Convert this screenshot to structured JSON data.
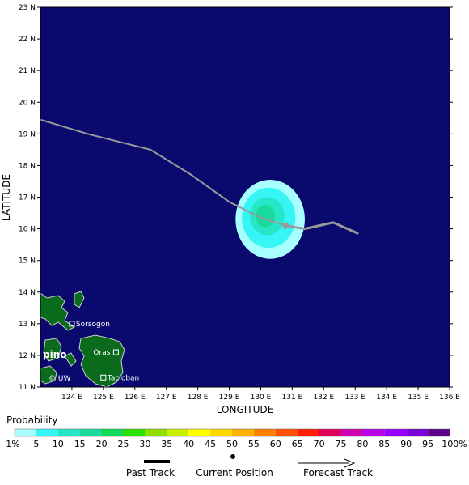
{
  "axes": {
    "xlabel": "LONGITUDE",
    "ylabel": "LATITUDE",
    "lon_min": 123.0,
    "lon_max": 136.0,
    "lat_min": 11.0,
    "lat_max": 23.0,
    "lon_ticks": [
      "124 E",
      "125 E",
      "126 E",
      "127 E",
      "128 E",
      "129 E",
      "130 E",
      "131 E",
      "132 E",
      "133 E",
      "134 E",
      "135 E",
      "136 E"
    ],
    "lat_ticks": [
      "11 N",
      "12 N",
      "13 N",
      "14 N",
      "15 N",
      "16 N",
      "17 N",
      "18 N",
      "19 N",
      "20 N",
      "21 N",
      "22 N",
      "23 N"
    ]
  },
  "colors": {
    "ocean": "#0a0a6e",
    "land": "#0b6b1c",
    "land_edge": "#cfcfcf",
    "track": "#9a9a9a"
  },
  "places": [
    {
      "name": "Sorsogon",
      "lon": 124.0,
      "lat": 13.0
    },
    {
      "name": "Oras",
      "lon": 125.4,
      "lat": 12.1
    },
    {
      "name": "Tacloban",
      "lon": 125.0,
      "lat": 11.3
    },
    {
      "name": "pino",
      "lon": 123.2,
      "lat": 12.0
    }
  ],
  "watermark": "© UW",
  "past_track": [
    [
      123.0,
      19.45
    ],
    [
      124.5,
      19.0
    ],
    [
      126.5,
      18.5
    ],
    [
      127.8,
      17.7
    ],
    [
      129.0,
      16.85
    ],
    [
      130.0,
      16.35
    ],
    [
      130.8,
      16.1
    ]
  ],
  "current_position": [
    130.8,
    16.1
  ],
  "forecast_track": [
    [
      130.8,
      16.1
    ],
    [
      131.4,
      16.0
    ],
    [
      132.3,
      16.2
    ],
    [
      133.1,
      15.85
    ]
  ],
  "probability": {
    "title": "Probability",
    "labels": [
      "1%",
      "5",
      "10",
      "15",
      "20",
      "25",
      "30",
      "35",
      "40",
      "45",
      "50",
      "55",
      "60",
      "65",
      "70",
      "75",
      "80",
      "85",
      "90",
      "95",
      "100%"
    ],
    "colors": [
      "#a8ffff",
      "#36f5f5",
      "#26e6c8",
      "#1ad99a",
      "#12d95a",
      "#2ee000",
      "#8fe000",
      "#c8ef00",
      "#ffff00",
      "#ffd800",
      "#ffb000",
      "#ff8000",
      "#ff5000",
      "#ff1e00",
      "#e0005a",
      "#d000b0",
      "#b400e6",
      "#9600ff",
      "#7800d8",
      "#5a008c"
    ],
    "contours": [
      {
        "level_index": 0,
        "lon": 130.3,
        "lat": 16.3,
        "rx": 1.1,
        "ry": 1.25
      },
      {
        "level_index": 1,
        "lon": 130.25,
        "lat": 16.35,
        "rx": 0.85,
        "ry": 0.95
      },
      {
        "level_index": 2,
        "lon": 130.2,
        "lat": 16.4,
        "rx": 0.55,
        "ry": 0.6
      },
      {
        "level_index": 3,
        "lon": 130.15,
        "lat": 16.4,
        "rx": 0.3,
        "ry": 0.35
      }
    ]
  },
  "legend": {
    "past": "Past Track",
    "current": "Current Position",
    "forecast": "Forecast Track"
  }
}
